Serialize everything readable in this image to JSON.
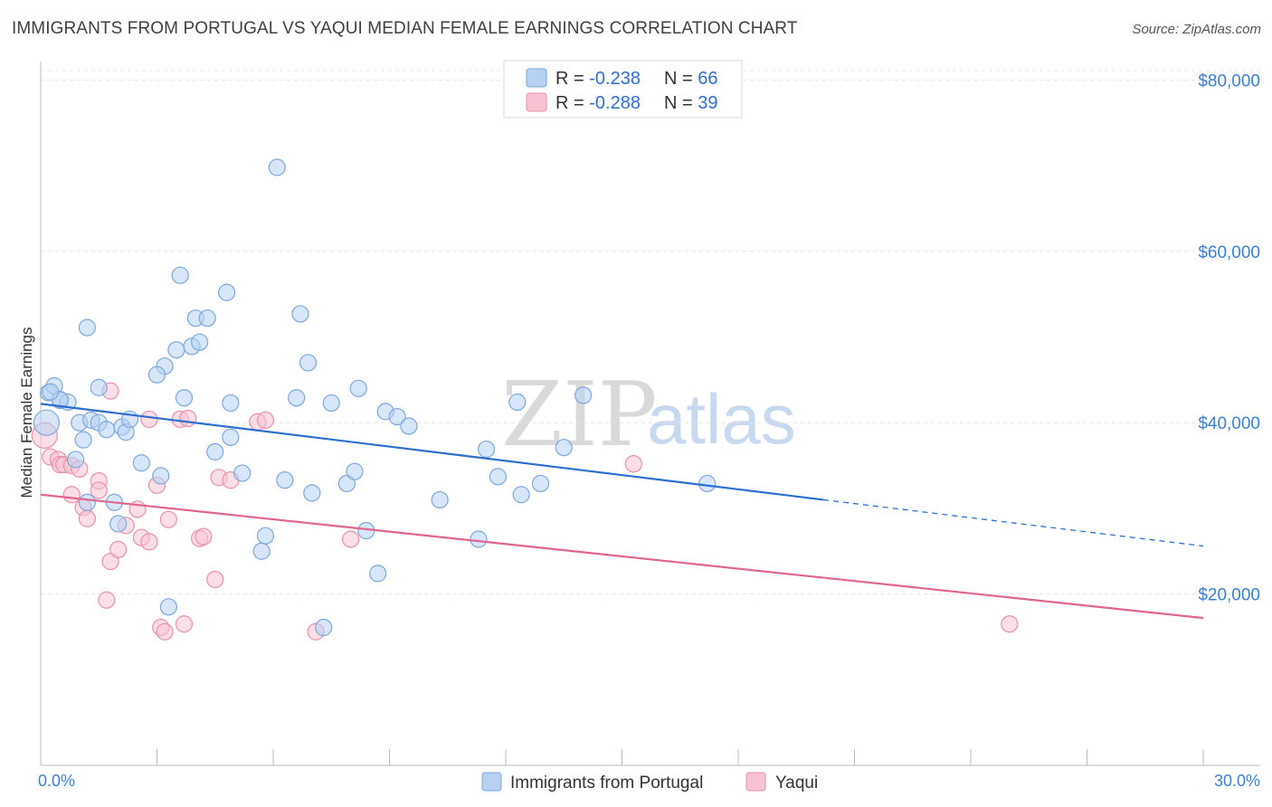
{
  "title": "IMMIGRANTS FROM PORTUGAL VS YAQUI MEDIAN FEMALE EARNINGS CORRELATION CHART",
  "source": "Source: ZipAtlas.com",
  "watermark": {
    "zip": "ZIP",
    "atlas": "atlas"
  },
  "colors": {
    "blue_fill": "#b7d1f2",
    "blue_stroke": "#7ea7dd",
    "blue_line": "#2c6fd0",
    "pink_fill": "#f7c3d2",
    "pink_stroke": "#e991ad",
    "pink_line": "#e0658f",
    "axis_text": "#3d7fd1",
    "grid": "#e3e3e3"
  },
  "legend": {
    "rows": [
      {
        "r_label": "R = ",
        "r_value": "-0.238",
        "n_label": "N = ",
        "n_value": "66"
      },
      {
        "r_label": "R = ",
        "r_value": "-0.288",
        "n_label": "N = ",
        "n_value": "39"
      }
    ]
  },
  "chart_data": {
    "type": "scatter",
    "xlabel": "",
    "ylabel": "Median Female Earnings",
    "xlim": [
      0,
      30
    ],
    "ylim": [
      0,
      83000
    ],
    "x_tick_labels": [
      "0.0%",
      "30.0%"
    ],
    "y_ticks": [
      20000,
      40000,
      60000,
      80000
    ],
    "y_tick_labels": [
      "$20,000",
      "$40,000",
      "$60,000",
      "$80,000"
    ],
    "series": [
      {
        "name": "Immigrants from Portugal",
        "color": "blue",
        "trend": {
          "x0": 0,
          "y0": 42200,
          "x1": 20.2,
          "y1": 31000,
          "dash_x1": 30,
          "dash_y1": 25600
        },
        "points": [
          [
            0.2,
            43500
          ],
          [
            0.35,
            44300
          ],
          [
            0.5,
            42600
          ],
          [
            0.7,
            42400
          ],
          [
            1.0,
            40000
          ],
          [
            1.1,
            38000
          ],
          [
            1.3,
            40300
          ],
          [
            1.5,
            40000
          ],
          [
            1.7,
            39200
          ],
          [
            2.1,
            39500
          ],
          [
            2.2,
            38900
          ],
          [
            2.3,
            40400
          ],
          [
            0.9,
            35700
          ],
          [
            1.2,
            30700
          ],
          [
            1.9,
            30700
          ],
          [
            2.0,
            28200
          ],
          [
            2.6,
            35300
          ],
          [
            3.1,
            33800
          ],
          [
            3.3,
            18500
          ],
          [
            3.6,
            57200
          ],
          [
            3.5,
            48500
          ],
          [
            3.2,
            46600
          ],
          [
            3.0,
            45600
          ],
          [
            3.7,
            42900
          ],
          [
            3.9,
            48900
          ],
          [
            4.0,
            52200
          ],
          [
            4.1,
            49400
          ],
          [
            4.3,
            52200
          ],
          [
            4.5,
            36600
          ],
          [
            4.8,
            55200
          ],
          [
            4.9,
            38300
          ],
          [
            4.9,
            42300
          ],
          [
            5.2,
            34100
          ],
          [
            5.7,
            25000
          ],
          [
            5.8,
            26800
          ],
          [
            6.1,
            69800
          ],
          [
            6.3,
            33300
          ],
          [
            6.6,
            42900
          ],
          [
            6.7,
            52700
          ],
          [
            6.9,
            47000
          ],
          [
            7.0,
            31800
          ],
          [
            7.3,
            16100
          ],
          [
            7.5,
            42300
          ],
          [
            7.9,
            32900
          ],
          [
            8.1,
            34300
          ],
          [
            8.2,
            44000
          ],
          [
            8.4,
            27400
          ],
          [
            8.7,
            22400
          ],
          [
            8.9,
            41300
          ],
          [
            9.2,
            40700
          ],
          [
            9.5,
            39600
          ],
          [
            10.3,
            31000
          ],
          [
            11.3,
            26400
          ],
          [
            11.5,
            36900
          ],
          [
            11.8,
            33700
          ],
          [
            12.3,
            42400
          ],
          [
            12.4,
            31600
          ],
          [
            12.9,
            32900
          ],
          [
            13.5,
            37100
          ],
          [
            14.0,
            43200
          ],
          [
            17.2,
            32900
          ],
          [
            1.2,
            51100
          ],
          [
            1.5,
            44100
          ],
          [
            0.5,
            42700
          ],
          [
            0.25,
            43600
          ],
          [
            0.15,
            40000
          ]
        ]
      },
      {
        "name": "Yaqui",
        "color": "pink",
        "trend": {
          "x0": 0,
          "y0": 31600,
          "x1": 30,
          "y1": 17200
        },
        "points": [
          [
            0.1,
            38500
          ],
          [
            0.25,
            36000
          ],
          [
            0.45,
            35700
          ],
          [
            0.5,
            35100
          ],
          [
            0.6,
            35100
          ],
          [
            0.8,
            35000
          ],
          [
            1.0,
            34600
          ],
          [
            0.8,
            31600
          ],
          [
            1.1,
            30100
          ],
          [
            1.2,
            28800
          ],
          [
            1.5,
            33200
          ],
          [
            1.5,
            32100
          ],
          [
            1.7,
            19300
          ],
          [
            1.8,
            23800
          ],
          [
            2.0,
            25200
          ],
          [
            2.2,
            28000
          ],
          [
            2.5,
            29900
          ],
          [
            2.6,
            26600
          ],
          [
            2.8,
            26100
          ],
          [
            3.0,
            32700
          ],
          [
            3.3,
            28700
          ],
          [
            3.1,
            16100
          ],
          [
            3.2,
            15600
          ],
          [
            3.7,
            16500
          ],
          [
            4.1,
            26500
          ],
          [
            4.2,
            26700
          ],
          [
            4.5,
            21700
          ],
          [
            4.6,
            33600
          ],
          [
            4.9,
            33300
          ],
          [
            5.6,
            40100
          ],
          [
            5.8,
            40300
          ],
          [
            7.1,
            15600
          ],
          [
            8.0,
            26400
          ],
          [
            2.8,
            40400
          ],
          [
            3.6,
            40400
          ],
          [
            1.8,
            43700
          ],
          [
            3.8,
            40500
          ],
          [
            15.3,
            35200
          ],
          [
            25.0,
            16500
          ]
        ]
      }
    ]
  }
}
